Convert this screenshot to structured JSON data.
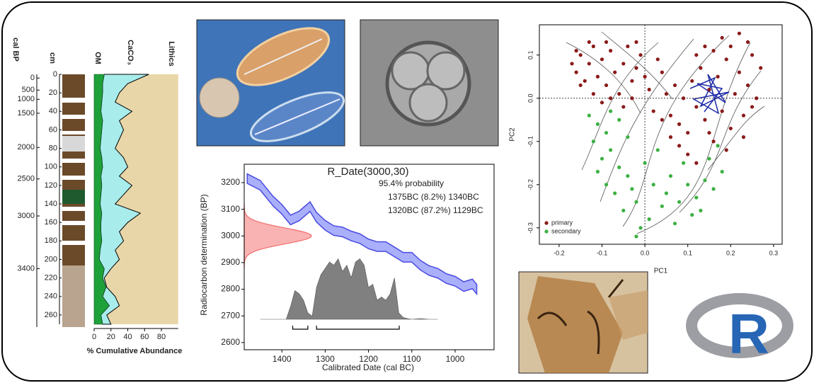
{
  "chart_data": [
    {
      "type": "stratigraphy",
      "age_label": "cal BP",
      "depth_label": "cm",
      "x_label": "% Cumulative Abundance",
      "depth": [
        0,
        10,
        20,
        30,
        40,
        50,
        60,
        70,
        80,
        90,
        100,
        110,
        120,
        130,
        140,
        150,
        160,
        170,
        180,
        190,
        200,
        210,
        220,
        230,
        240,
        250,
        260,
        270
      ],
      "series": [
        {
          "name": "OM",
          "color": "#1fa13a",
          "values": [
            12,
            10,
            10,
            9,
            8,
            10,
            9,
            8,
            7,
            9,
            10,
            8,
            9,
            8,
            7,
            9,
            8,
            8,
            9,
            7,
            6,
            12,
            10,
            14,
            10,
            18,
            8,
            10
          ]
        },
        {
          "name": "CaCO₃",
          "color": "#a8ecec",
          "values": [
            53,
            30,
            20,
            16,
            37,
            20,
            26,
            22,
            18,
            26,
            30,
            22,
            36,
            27,
            18,
            46,
            32,
            22,
            26,
            18,
            24,
            8,
            2,
            1,
            15,
            12,
            7,
            10
          ]
        }
      ],
      "lithics_label": "Lithics",
      "lithics_color": "#e8d6a8",
      "ylim": [
        0,
        270
      ],
      "yticks": [
        0,
        20,
        40,
        60,
        80,
        100,
        120,
        140,
        160,
        180,
        200,
        220,
        240,
        260
      ],
      "xlim": [
        0,
        100
      ],
      "xticks": [
        0,
        20,
        40,
        60,
        80
      ],
      "age_ticks": [
        {
          "value": 0,
          "depth": 4
        },
        {
          "value": 500,
          "depth": 17
        },
        {
          "value": 1000,
          "depth": 27
        },
        {
          "value": 1500,
          "depth": 42
        },
        {
          "value": 2000,
          "depth": 79
        },
        {
          "value": 2500,
          "depth": 113
        },
        {
          "value": 3000,
          "depth": 153
        },
        {
          "value": 3400,
          "depth": 210
        }
      ]
    },
    {
      "type": "calibration",
      "title": "R_Date(3000,30)",
      "annotations": [
        "95.4% probability",
        "1375BC (8.2%) 1340BC",
        "1320BC (87.2%) 1129BC"
      ],
      "x_label": "Calibrated Date (cal BC)",
      "y_label": "Radiocarbon determination (BP)",
      "xlim": [
        1487,
        910
      ],
      "xticks": [
        1400,
        1300,
        1200,
        1100,
        1000
      ],
      "ylim": [
        2573,
        3269
      ],
      "yticks": [
        2600,
        2700,
        2800,
        2900,
        3000,
        3100,
        3200
      ],
      "curve": {
        "color": "#4b4be0",
        "x": [
          1480,
          1450,
          1420,
          1400,
          1380,
          1360,
          1335,
          1320,
          1300,
          1280,
          1260,
          1240,
          1220,
          1200,
          1180,
          1160,
          1140,
          1120,
          1100,
          1080,
          1060,
          1040,
          1020,
          1000,
          980,
          960,
          950
        ],
        "values": [
          3215,
          3190,
          3130,
          3100,
          3060,
          3075,
          3110,
          3070,
          3040,
          3020,
          3015,
          3000,
          2990,
          2970,
          2960,
          2960,
          2940,
          2920,
          2920,
          2890,
          2870,
          2860,
          2840,
          2830,
          2810,
          2820,
          2800
        ],
        "sigma": 18
      },
      "measurement": {
        "color": "#f26d6d",
        "mean": 3000,
        "sd": 30
      },
      "density": {
        "color": "#808080",
        "x": [
          1450,
          1420,
          1390,
          1380,
          1370,
          1360,
          1350,
          1340,
          1330,
          1320,
          1310,
          1300,
          1290,
          1280,
          1270,
          1260,
          1250,
          1240,
          1230,
          1220,
          1210,
          1200,
          1190,
          1180,
          1170,
          1160,
          1150,
          1140,
          1130,
          1120,
          1110,
          1100,
          1080,
          1060,
          1040
        ],
        "values": [
          0,
          0,
          0,
          0.2,
          0.45,
          0.4,
          0.3,
          0.1,
          0.05,
          0.5,
          0.7,
          0.8,
          0.9,
          0.85,
          0.95,
          0.75,
          0.85,
          0.65,
          0.9,
          0.95,
          0.85,
          0.5,
          0.55,
          0.3,
          0.35,
          0.3,
          0.4,
          0.65,
          0.1,
          0.03,
          0.01,
          0,
          0.01,
          0,
          0
        ]
      },
      "ranges": [
        [
          1375,
          1340
        ],
        [
          1320,
          1129
        ]
      ]
    },
    {
      "type": "scatter",
      "x_label": "PC1",
      "y_label": "PC2",
      "xlim": [
        -0.246,
        0.32
      ],
      "xticks": [
        -0.2,
        -0.1,
        {
          "value": 0,
          "label": "0.0"
        },
        0.1,
        0.2,
        0.3
      ],
      "ylim": [
        -0.338,
        0.17
      ],
      "yticks": [
        -0.3,
        -0.2,
        -0.1,
        {
          "value": 0,
          "label": "0.0"
        },
        0.1
      ],
      "legend": "bottom-left",
      "series": [
        {
          "name": "primary",
          "color": "#8b1a1a",
          "x": [
            -0.17,
            -0.16,
            -0.15,
            -0.14,
            -0.13,
            -0.12,
            -0.11,
            -0.1,
            -0.09,
            -0.08,
            -0.07,
            -0.06,
            -0.05,
            -0.04,
            -0.03,
            -0.02,
            -0.01,
            0.0,
            0.01,
            -0.12,
            -0.1,
            -0.08,
            -0.15,
            -0.05,
            -0.03,
            0.02,
            0.04,
            0.05,
            0.06,
            0.07,
            0.08,
            0.09,
            0.1,
            0.11,
            0.12,
            0.13,
            0.14,
            0.15,
            0.16,
            0.17,
            0.18,
            0.19,
            0.2,
            0.21,
            0.22,
            0.23,
            0.24,
            0.25,
            0.26,
            0.27,
            0.2,
            0.18,
            0.22,
            0.24,
            0.16,
            0.14,
            0.12,
            0.1,
            0.08,
            0.12,
            0.06,
            0.04,
            0.15,
            0.19,
            0.23,
            0.03,
            -0.16,
            -0.13,
            -0.09,
            -0.02,
            0.25
          ],
          "values": [
            0.08,
            0.06,
            0.1,
            0.04,
            0.08,
            0.12,
            0.05,
            0.09,
            0.03,
            0.11,
            0.06,
            0.01,
            0.08,
            0.12,
            0.04,
            0.07,
            0.1,
            0.05,
            0.02,
            0.01,
            -0.01,
            0.0,
            0.03,
            -0.02,
            0.0,
            -0.03,
            0.06,
            0.01,
            -0.04,
            0.03,
            -0.06,
            0.0,
            -0.08,
            0.04,
            -0.02,
            0.07,
            -0.05,
            0.02,
            -0.1,
            0.05,
            -0.03,
            0.09,
            -0.07,
            0.01,
            0.06,
            -0.04,
            0.03,
            0.1,
            0.0,
            0.07,
            0.12,
            0.14,
            0.15,
            0.13,
            0.11,
            0.12,
            0.1,
            -0.13,
            -0.11,
            -0.15,
            -0.09,
            -0.05,
            -0.08,
            -0.12,
            -0.09,
            0.09,
            0.11,
            0.13,
            0.13,
            0.13,
            -0.02
          ]
        },
        {
          "name": "secondary",
          "color": "#3cb043",
          "x": [
            -0.13,
            -0.11,
            -0.09,
            -0.12,
            -0.1,
            -0.08,
            -0.06,
            -0.09,
            -0.07,
            -0.04,
            -0.02,
            -0.05,
            -0.03,
            0.0,
            0.01,
            -0.01,
            -0.02,
            0.02,
            0.04,
            0.05,
            0.06,
            0.08,
            0.1,
            0.12,
            0.14,
            0.16,
            0.18,
            0.17,
            0.11,
            0.09,
            -0.06,
            -0.08,
            0.03,
            0.07,
            0.13,
            -0.11,
            -0.04,
            0.15
          ],
          "values": [
            -0.04,
            -0.06,
            -0.08,
            -0.1,
            -0.14,
            -0.12,
            -0.16,
            -0.2,
            -0.22,
            -0.18,
            -0.24,
            -0.26,
            -0.21,
            -0.15,
            -0.28,
            -0.3,
            -0.32,
            -0.2,
            -0.25,
            -0.22,
            -0.18,
            -0.24,
            -0.2,
            -0.23,
            -0.19,
            -0.21,
            -0.17,
            -0.11,
            -0.27,
            -0.15,
            -0.05,
            -0.03,
            -0.12,
            -0.29,
            -0.26,
            -0.17,
            -0.09,
            -0.14
          ]
        }
      ]
    }
  ],
  "logo": "R"
}
